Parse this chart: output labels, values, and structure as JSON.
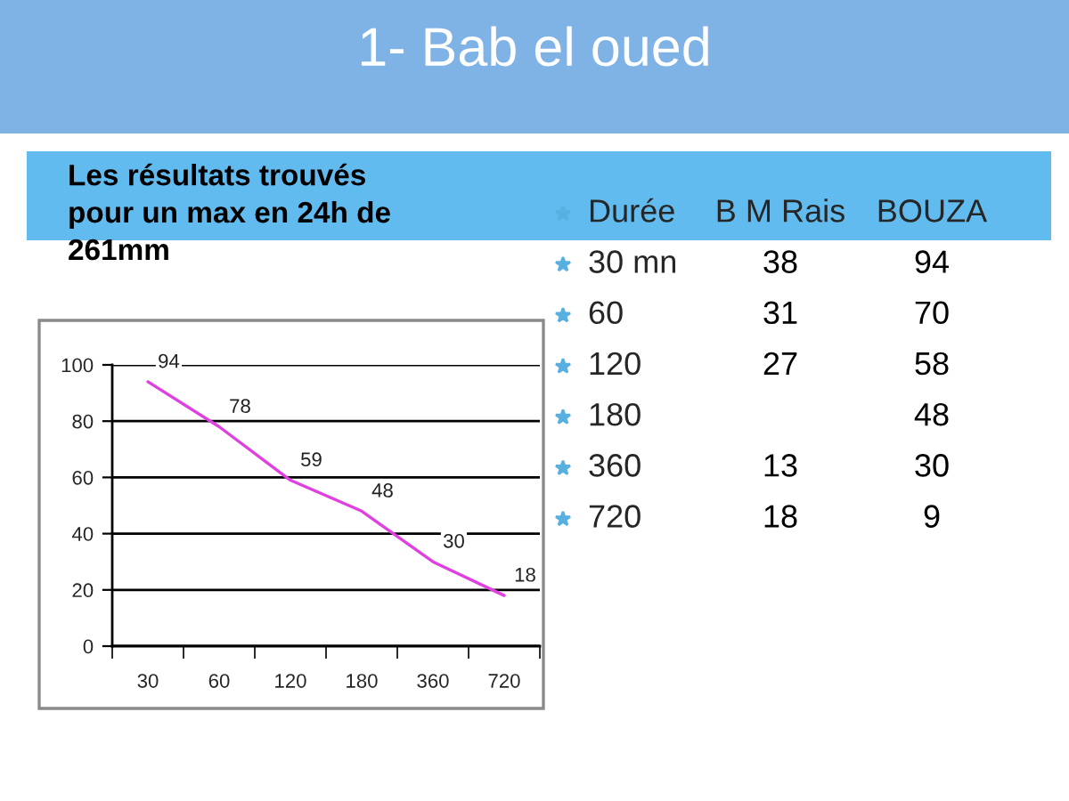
{
  "chart_data": [
    {
      "type": "line",
      "title": "1- Bab el oued",
      "subtitle": "Les résultats trouvés\npour un max en 24h de\n261mm",
      "categories": [
        "30",
        "60",
        "120",
        "180",
        "360",
        "720"
      ],
      "series": [
        {
          "color": "#e040e0",
          "values": [
            94,
            78,
            59,
            48,
            30,
            18
          ]
        }
      ],
      "ylim": [
        0,
        100
      ],
      "yticks": [
        0,
        20,
        40,
        60,
        80,
        100
      ],
      "grid": "y",
      "data_labels": true,
      "marker": "none",
      "line_style": "solid"
    },
    {
      "type": "other",
      "xlabel": "Durée",
      "categories": [
        "30 mn",
        "60",
        "120",
        "180",
        "360",
        "720"
      ],
      "data_labels": true,
      "series": [
        {
          "name": "B M Rais",
          "values": [
            38,
            31,
            27,
            null,
            13,
            18
          ]
        },
        {
          "name": "BOUZA",
          "values": [
            94,
            70,
            58,
            48,
            30,
            9
          ]
        }
      ]
    }
  ]
}
